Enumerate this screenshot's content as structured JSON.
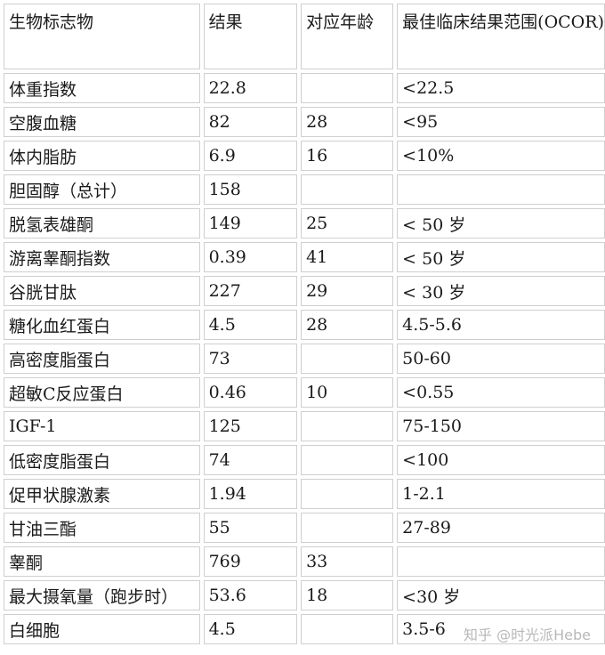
{
  "headers": [
    "生物标志物",
    "结果",
    "对应年龄",
    "最佳临床结果范围(OCOR)"
  ],
  "rows": [
    [
      "体重指数",
      "22.8",
      "",
      "<22.5"
    ],
    [
      "空腹血糖",
      "82",
      "28",
      "<95"
    ],
    [
      "体内脂肪",
      "6.9",
      "16",
      "<10%"
    ],
    [
      "胆固醇（总计）",
      "158",
      "",
      ""
    ],
    [
      "脱氢表雄酮",
      "149",
      "25",
      "< 50 岁"
    ],
    [
      "游离睾酮指数",
      "0.39",
      "41",
      "< 50 岁"
    ],
    [
      "谷胱甘肽",
      "227",
      "29",
      "< 30 岁"
    ],
    [
      "糖化血红蛋白",
      "4.5",
      "28",
      "4.5-5.6"
    ],
    [
      "高密度脂蛋白",
      "73",
      "",
      "50-60"
    ],
    [
      "超敏C反应蛋白",
      "0.46",
      "10",
      "<0.55"
    ],
    [
      "IGF-1",
      "125",
      "",
      "75-150"
    ],
    [
      "低密度脂蛋白",
      "74",
      "",
      "<100"
    ],
    [
      "促甲状腺激素",
      "1.94",
      "",
      "1-2.1"
    ],
    [
      "甘油三酯",
      "55",
      "",
      "27-89"
    ],
    [
      "睾酮",
      "769",
      "33",
      ""
    ],
    [
      "最大摄氧量（跑步时）",
      "53.6",
      "18",
      "<30 岁"
    ],
    [
      "白细胞",
      "4.5",
      "",
      "3.5-6"
    ]
  ],
  "watermark": "知乎 @时光派Hebe"
}
